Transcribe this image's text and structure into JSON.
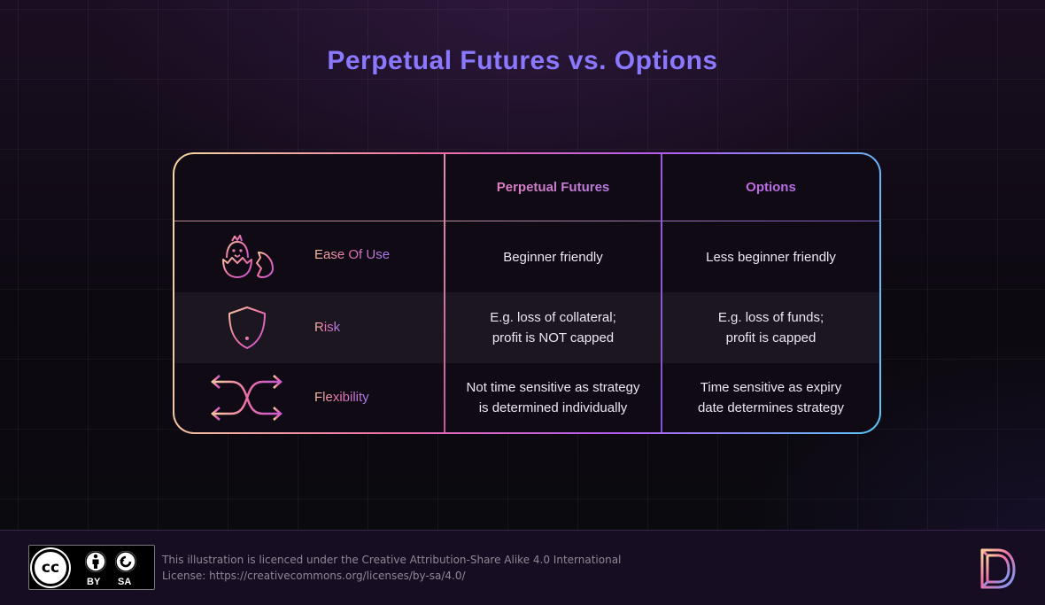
{
  "title": "Perpetual Futures vs. Options",
  "table": {
    "headers": [
      "",
      "Perpetual Futures",
      "Options"
    ],
    "rows": [
      {
        "icon": "hatching-chick-icon",
        "label": "Ease Of Use",
        "perpetual_futures": "Beginner friendly",
        "options": "Less beginner friendly"
      },
      {
        "icon": "shield-exclamation-icon",
        "label": "Risk",
        "perpetual_futures": "E.g. loss of collateral;\nprofit is NOT capped",
        "options": "E.g. loss of funds;\nprofit is capped"
      },
      {
        "icon": "crossing-arrows-icon",
        "label": "Flexibility",
        "perpetual_futures": "Not time sensitive as strategy\nis determined individually",
        "options": "Time sensitive as expiry\ndate determines strategy"
      }
    ]
  },
  "footer": {
    "cc_badge": {
      "cc": "cc",
      "by": "BY",
      "sa": "SA"
    },
    "license_line1": "This illustration is licenced under the Creative Attribution-Share Alike 4.0 International",
    "license_line2": "License: https://creativecommons.org/licenses/by-sa/4.0/"
  },
  "colors": {
    "title": "#8a78ff",
    "border_gradient": [
      "#f5d8a0",
      "#ee6fa6",
      "#b45cf0",
      "#5ac8f7"
    ],
    "background": "#0c0710",
    "footer_bg": "#170d22"
  }
}
